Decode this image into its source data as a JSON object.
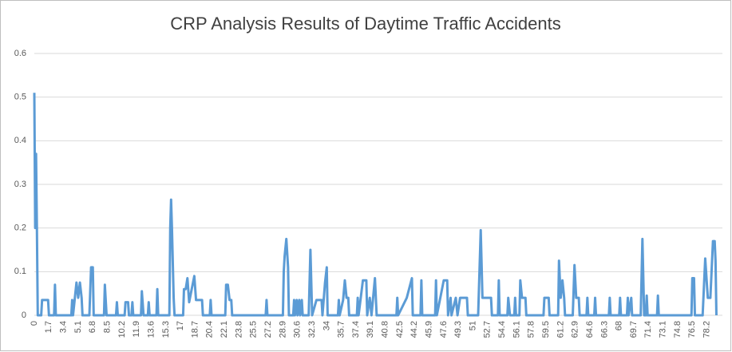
{
  "chart_data": {
    "type": "line",
    "title": "CRP Analysis Results of Daytime Traffic Accidents",
    "series": [
      {
        "color": "#5b9bd5",
        "x": [
          0,
          0.1,
          0.2,
          0.3,
          0.4,
          0.8,
          0.9,
          1.6,
          1.7,
          2.3,
          2.4,
          2.5,
          4.3,
          4.4,
          4.5,
          4.9,
          5.1,
          5.3,
          5.5,
          5.6,
          6.4,
          6.6,
          6.8,
          6.9,
          8.1,
          8.2,
          8.4,
          9.5,
          9.6,
          9.7,
          10.5,
          10.6,
          10.9,
          11,
          11.3,
          11.4,
          11.5,
          12.4,
          12.5,
          12.7,
          13.2,
          13.3,
          13.4,
          14.2,
          14.3,
          14.4,
          15.7,
          15.8,
          15.9,
          16,
          16.2,
          16.3,
          17.3,
          17.4,
          17.6,
          17.8,
          18,
          18.6,
          18.8,
          19.5,
          19.6,
          20.4,
          20.5,
          20.6,
          22.2,
          22.3,
          22.5,
          22.7,
          22.9,
          23,
          26.9,
          27,
          27.1,
          28.9,
          29,
          29.1,
          29.3,
          29.5,
          29.6,
          30.1,
          30.2,
          30.3,
          30.5,
          30.6,
          30.8,
          30.9,
          31.1,
          31.2,
          31.9,
          32.1,
          32.3,
          32.8,
          33.4,
          33.5,
          33.8,
          34,
          34.1,
          35.3,
          35.4,
          35.5,
          35.9,
          36.1,
          36.3,
          36.5,
          36.6,
          37.5,
          37.6,
          37.7,
          38.2,
          38.6,
          38.7,
          39,
          39.2,
          39.6,
          39.8,
          42.1,
          42.2,
          42.3,
          43.3,
          43.9,
          44,
          44.9,
          45,
          45.1,
          46.6,
          46.7,
          46.8,
          47.6,
          48,
          48.1,
          48.4,
          48.5,
          49,
          49.2,
          49.5,
          50.3,
          50.4,
          51.6,
          51.9,
          52.1,
          53.1,
          53.2,
          53.9,
          54,
          54.1,
          55,
          55.1,
          55.3,
          55.8,
          55.9,
          56,
          56.4,
          56.5,
          56.7,
          57.1,
          57.2,
          59.2,
          59.3,
          59.8,
          59.9,
          60.9,
          61,
          61.2,
          61.4,
          61.6,
          61.7,
          62.6,
          62.8,
          63,
          63.3,
          63.4,
          64.2,
          64.3,
          64.4,
          65.1,
          65.2,
          65.3,
          66.8,
          66.9,
          67,
          68,
          68.1,
          68.2,
          68.9,
          69,
          69.1,
          69.4,
          69.5,
          70.5,
          70.7,
          70.9,
          71.1,
          71.2,
          71.3,
          72.4,
          72.5,
          72.6,
          76.4,
          76.5,
          76.7,
          76.8,
          77.7,
          78,
          78.3,
          78.6,
          78.9,
          79.1,
          79.2,
          79.3
        ],
        "values": [
          0.51,
          0.2,
          0.37,
          0.2,
          0,
          0,
          0.035,
          0.035,
          0,
          0,
          0.07,
          0,
          0,
          0.035,
          0,
          0.075,
          0.04,
          0.075,
          0.04,
          0,
          0,
          0.11,
          0.11,
          0,
          0,
          0.07,
          0,
          0,
          0.03,
          0,
          0,
          0.03,
          0.03,
          0,
          0,
          0.03,
          0,
          0,
          0.055,
          0,
          0,
          0.03,
          0,
          0,
          0.06,
          0,
          0,
          0.2,
          0.265,
          0.2,
          0.04,
          0,
          0,
          0.06,
          0.06,
          0.085,
          0.03,
          0.09,
          0.035,
          0.035,
          0,
          0,
          0.035,
          0,
          0,
          0.07,
          0.07,
          0.035,
          0.035,
          0,
          0,
          0.035,
          0,
          0,
          0.1,
          0.135,
          0.175,
          0.11,
          0,
          0,
          0.035,
          0,
          0.035,
          0,
          0.035,
          0,
          0.035,
          0,
          0,
          0.15,
          0,
          0.035,
          0.035,
          0,
          0.075,
          0.11,
          0,
          0,
          0.035,
          0,
          0.035,
          0.08,
          0.04,
          0.04,
          0,
          0,
          0.04,
          0,
          0.08,
          0.08,
          0,
          0.04,
          0,
          0.085,
          0,
          0,
          0.04,
          0,
          0.04,
          0.085,
          0,
          0,
          0.08,
          0,
          0,
          0.08,
          0,
          0.08,
          0.08,
          0,
          0.04,
          0,
          0.04,
          0,
          0.04,
          0.04,
          0,
          0,
          0.195,
          0.04,
          0.04,
          0,
          0,
          0.08,
          0,
          0,
          0.04,
          0,
          0,
          0.04,
          0,
          0,
          0.08,
          0.04,
          0.04,
          0,
          0,
          0.04,
          0.04,
          0,
          0,
          0.125,
          0.04,
          0.08,
          0.04,
          0,
          0,
          0.115,
          0.04,
          0.04,
          0,
          0,
          0.04,
          0,
          0,
          0.04,
          0,
          0,
          0.04,
          0,
          0,
          0.04,
          0,
          0,
          0.04,
          0,
          0.04,
          0,
          0,
          0.175,
          0,
          0,
          0.045,
          0,
          0,
          0.045,
          0,
          0,
          0.085,
          0.085,
          0,
          0,
          0.13,
          0.04,
          0.04,
          0.17,
          0.17,
          0.125,
          0
        ]
      }
    ],
    "xlim": [
      0,
      80
    ],
    "xticks": [
      0,
      1.7,
      3.4,
      5.1,
      6.8,
      8.5,
      10.2,
      11.9,
      13.6,
      15.3,
      17,
      18.7,
      20.4,
      22.1,
      23.8,
      25.5,
      27.2,
      28.9,
      30.6,
      32.3,
      34,
      35.7,
      37.4,
      39.1,
      40.8,
      42.5,
      44.2,
      45.9,
      47.6,
      49.3,
      51,
      52.7,
      54.4,
      56.1,
      57.8,
      59.5,
      61.2,
      62.9,
      64.6,
      66.3,
      68,
      69.7,
      71.4,
      73.1,
      74.8,
      76.5,
      78.2
    ],
    "ylim": [
      0,
      0.6
    ],
    "yticks": [
      0,
      0.1,
      0.2,
      0.3,
      0.4,
      0.5,
      0.6
    ],
    "grid": true
  }
}
